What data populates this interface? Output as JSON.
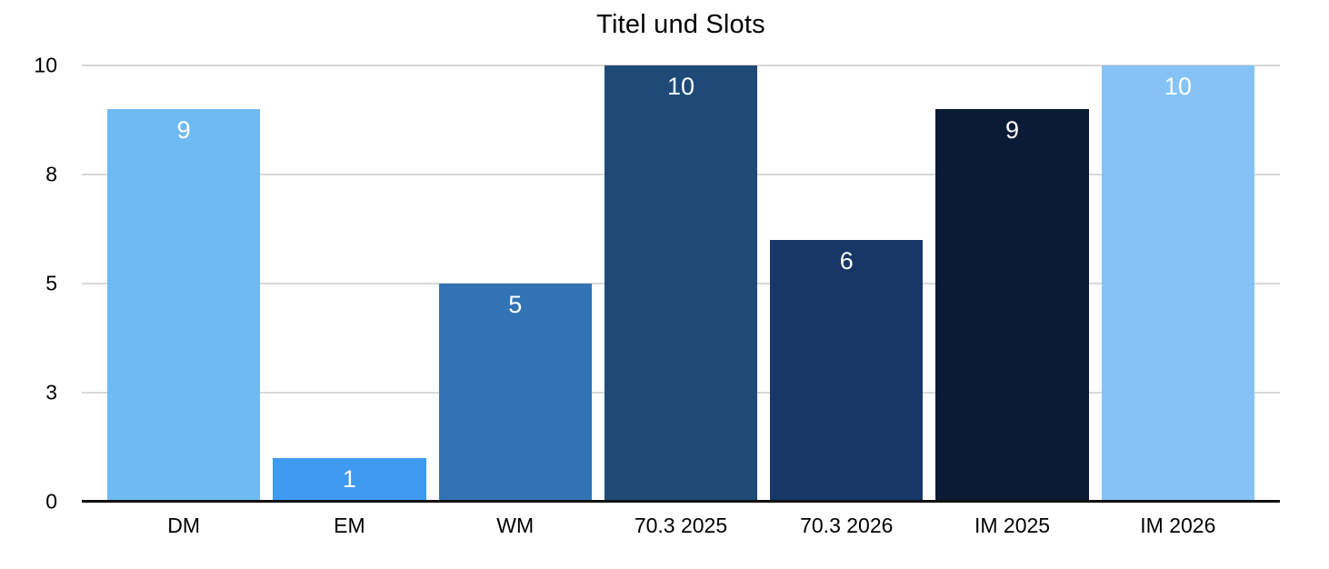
{
  "chart_data": {
    "type": "bar",
    "title": "Titel und Slots",
    "categories": [
      "DM",
      "EM",
      "WM",
      "70.3 2025",
      "70.3 2026",
      "IM 2025",
      "IM 2026"
    ],
    "values": [
      9,
      1,
      5,
      10,
      6,
      9,
      10
    ],
    "value_labels": [
      "9",
      "1",
      "5",
      "10",
      "6",
      "9",
      "10"
    ],
    "series": [
      {
        "name": "Titel und Slots",
        "values": [
          9,
          1,
          5,
          10,
          6,
          9,
          10
        ]
      }
    ],
    "bar_colors": [
      "#70BAF3",
      "#3F9AF1",
      "#3173B4",
      "#1E4A78",
      "#173767",
      "#0B1B35",
      "#85C3F6"
    ],
    "xlabel": "",
    "ylabel": "",
    "ylim": [
      0,
      10
    ],
    "y_ticks": [
      {
        "value": 0,
        "label": "0"
      },
      {
        "value": 2.5,
        "label": "3"
      },
      {
        "value": 5,
        "label": "5"
      },
      {
        "value": 7.5,
        "label": "8"
      },
      {
        "value": 10,
        "label": "10"
      }
    ],
    "grid": true,
    "legend_position": "none",
    "colors": {
      "background": "#FFFFFF",
      "gridline": "#D8D8D8",
      "axis_line": "#111111",
      "title_text": "#000000",
      "tick_text": "#000000",
      "value_label_text": "#FFFFFF"
    }
  }
}
